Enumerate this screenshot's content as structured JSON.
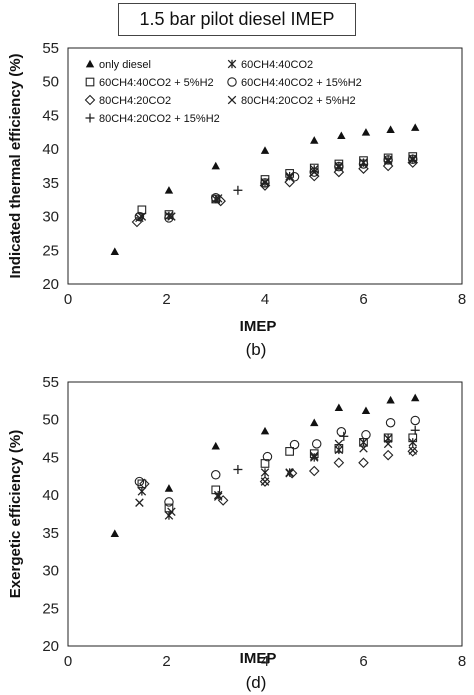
{
  "title": "1.5 bar pilot diesel IMEP",
  "chart_data": [
    {
      "type": "scatter",
      "panel_label": "(b)",
      "xlabel": "IMEP",
      "ylabel": "Indicated thermal efficiency (%)",
      "xlim": [
        0,
        8
      ],
      "ylim": [
        20,
        55
      ],
      "xticks": [
        0,
        2,
        4,
        6,
        8
      ],
      "yticks": [
        20,
        25,
        30,
        35,
        40,
        45,
        50,
        55
      ],
      "grid": false,
      "legend_placement": "top-left",
      "series": [
        {
          "name": "only diesel",
          "marker": "triangle-filled",
          "points": [
            [
              0.95,
              24.8
            ],
            [
              2.05,
              33.9
            ],
            [
              3.0,
              37.5
            ],
            [
              4.0,
              39.8
            ],
            [
              5.0,
              41.3
            ],
            [
              5.55,
              42.0
            ],
            [
              6.05,
              42.5
            ],
            [
              6.55,
              42.9
            ],
            [
              7.05,
              43.2
            ]
          ]
        },
        {
          "name": "60CH4:40CO2",
          "marker": "asterisk",
          "points": [
            [
              1.5,
              30.0
            ],
            [
              2.05,
              30.1
            ],
            [
              3.0,
              32.6
            ],
            [
              4.0,
              35.0
            ],
            [
              4.5,
              36.0
            ],
            [
              5.0,
              37.0
            ],
            [
              5.5,
              37.5
            ],
            [
              6.0,
              38.0
            ],
            [
              6.5,
              38.4
            ],
            [
              7.0,
              38.6
            ]
          ]
        },
        {
          "name": "60CH4:40CO2 + 5%H2",
          "marker": "square-open",
          "points": [
            [
              1.5,
              31.0
            ],
            [
              2.05,
              30.3
            ],
            [
              3.0,
              32.6
            ],
            [
              4.0,
              35.5
            ],
            [
              4.5,
              36.4
            ],
            [
              5.0,
              37.2
            ],
            [
              5.5,
              37.8
            ],
            [
              6.0,
              38.3
            ],
            [
              6.5,
              38.7
            ],
            [
              7.0,
              38.9
            ]
          ]
        },
        {
          "name": "60CH4:40CO2 + 15%H2",
          "marker": "circle-open",
          "points": [
            [
              1.45,
              30.0
            ],
            [
              2.05,
              29.8
            ],
            [
              3.0,
              32.8
            ],
            [
              4.0,
              35.0
            ],
            [
              4.6,
              35.9
            ],
            [
              5.0,
              36.6
            ],
            [
              5.5,
              37.4
            ],
            [
              6.0,
              37.8
            ],
            [
              6.5,
              38.4
            ],
            [
              7.0,
              38.5
            ]
          ]
        },
        {
          "name": "80CH4:20CO2",
          "marker": "diamond-open",
          "points": [
            [
              1.4,
              29.2
            ],
            [
              3.1,
              32.3
            ],
            [
              4.0,
              34.6
            ],
            [
              4.5,
              35.1
            ],
            [
              5.0,
              36.0
            ],
            [
              5.5,
              36.6
            ],
            [
              6.0,
              37.1
            ],
            [
              6.5,
              37.5
            ],
            [
              7.0,
              38.0
            ]
          ]
        },
        {
          "name": "80CH4:20CO2 + 5%H2",
          "marker": "x",
          "points": [
            [
              1.45,
              29.8
            ],
            [
              2.1,
              30.0
            ],
            [
              3.05,
              32.7
            ],
            [
              4.0,
              35.1
            ],
            [
              4.5,
              35.8
            ],
            [
              5.0,
              36.6
            ],
            [
              5.5,
              37.3
            ],
            [
              6.0,
              38.0
            ],
            [
              6.5,
              38.2
            ],
            [
              7.0,
              38.4
            ]
          ]
        },
        {
          "name": "80CH4:20CO2 + 15%H2",
          "marker": "plus",
          "points": [
            [
              3.45,
              33.9
            ]
          ]
        }
      ]
    },
    {
      "type": "scatter",
      "panel_label": "(d)",
      "xlabel": "IMEP",
      "ylabel": "Exergetic efficiency (%)",
      "xlim": [
        0,
        8
      ],
      "ylim": [
        20,
        55
      ],
      "xticks": [
        0,
        2,
        4,
        6,
        8
      ],
      "yticks": [
        20,
        25,
        30,
        35,
        40,
        45,
        50,
        55
      ],
      "grid": false,
      "series": [
        {
          "name": "only diesel",
          "marker": "triangle-filled",
          "points": [
            [
              0.95,
              34.9
            ],
            [
              2.05,
              40.9
            ],
            [
              3.0,
              46.5
            ],
            [
              4.0,
              48.5
            ],
            [
              5.0,
              49.6
            ],
            [
              5.5,
              51.6
            ],
            [
              6.05,
              51.2
            ],
            [
              6.55,
              52.6
            ],
            [
              7.05,
              52.9
            ]
          ]
        },
        {
          "name": "60CH4:40CO2",
          "marker": "asterisk",
          "points": [
            [
              1.5,
              40.5
            ],
            [
              2.05,
              37.3
            ],
            [
              3.05,
              40.0
            ],
            [
              4.0,
              43.0
            ],
            [
              4.5,
              43.0
            ],
            [
              5.0,
              45.0
            ],
            [
              5.5,
              46.0
            ],
            [
              6.0,
              47.0
            ],
            [
              6.5,
              47.5
            ],
            [
              7.0,
              47.0
            ]
          ]
        },
        {
          "name": "60CH4:40CO2 + 5%H2",
          "marker": "square-open",
          "points": [
            [
              1.5,
              41.5
            ],
            [
              2.05,
              38.3
            ],
            [
              3.0,
              40.7
            ],
            [
              4.0,
              44.2
            ],
            [
              4.5,
              45.8
            ],
            [
              5.0,
              45.5
            ],
            [
              5.5,
              46.2
            ],
            [
              6.0,
              47.0
            ],
            [
              6.5,
              47.6
            ],
            [
              7.0,
              47.6
            ]
          ]
        },
        {
          "name": "60CH4:40CO2 + 15%H2",
          "marker": "circle-open",
          "points": [
            [
              1.45,
              41.8
            ],
            [
              2.05,
              39.1
            ],
            [
              3.0,
              42.7
            ],
            [
              4.05,
              45.1
            ],
            [
              4.6,
              46.7
            ],
            [
              5.05,
              46.8
            ],
            [
              5.55,
              48.4
            ],
            [
              6.05,
              48.0
            ],
            [
              6.55,
              49.6
            ],
            [
              7.05,
              49.9
            ]
          ]
        },
        {
          "name": "80CH4:20CO2",
          "marker": "diamond-open",
          "points": [
            [
              1.55,
              41.5
            ],
            [
              3.15,
              39.3
            ],
            [
              4.0,
              41.8
            ],
            [
              4.55,
              42.9
            ],
            [
              5.0,
              43.2
            ],
            [
              5.5,
              44.3
            ],
            [
              6.0,
              44.3
            ],
            [
              6.5,
              45.3
            ],
            [
              7.0,
              45.8
            ]
          ]
        },
        {
          "name": "80CH4:20CO2 + 5%H2",
          "marker": "x",
          "points": [
            [
              1.45,
              39.0
            ],
            [
              2.1,
              37.8
            ],
            [
              3.05,
              39.8
            ],
            [
              4.0,
              41.8
            ],
            [
              4.5,
              42.9
            ],
            [
              5.0,
              45.2
            ],
            [
              5.5,
              46.8
            ],
            [
              6.0,
              46.2
            ],
            [
              6.5,
              46.8
            ],
            [
              7.0,
              45.9
            ]
          ]
        },
        {
          "name": "80CH4:20CO2 + 15%H2",
          "marker": "plus",
          "points": [
            [
              3.45,
              43.4
            ],
            [
              5.6,
              47.8
            ],
            [
              7.05,
              48.6
            ]
          ]
        }
      ]
    }
  ]
}
